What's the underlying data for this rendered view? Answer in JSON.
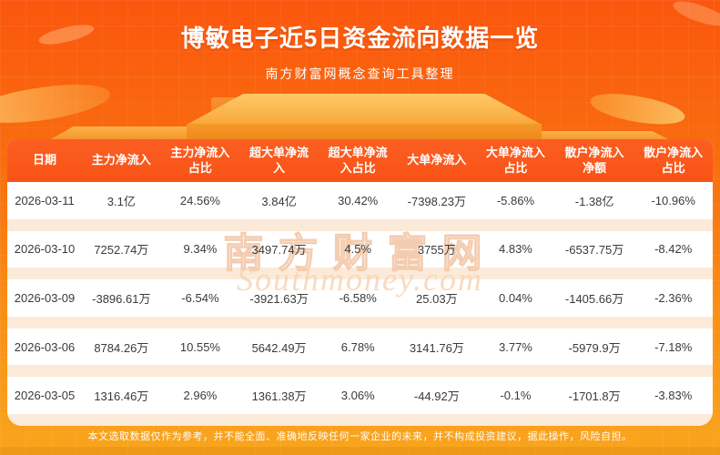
{
  "header": {
    "title": "博敏电子近5日资金流向数据一览",
    "subtitle": "南方财富网概念查询工具整理"
  },
  "watermark": {
    "cn": "南方财富网",
    "en": "Southmoney.com"
  },
  "footer": {
    "disclaimer": "本文选取数据仅作为参考，并不能全面、准确地反映任何一家企业的未来，并不构成投资建议，据此操作，风险自担。"
  },
  "colors": {
    "bg_top": "#fb560e",
    "bg_bottom": "#f9a51d",
    "table_header_bg": "#f95316",
    "row_bg": "#ffffff",
    "row_separator": "#fbead8",
    "podium_top": "#fdc968",
    "podium_front": "#ee8317",
    "body_text": "#3a3a3a",
    "title_text": "#ffffff"
  },
  "chart_data": {
    "type": "table",
    "title": "博敏电子近5日资金流向数据一览",
    "subtitle": "南方财富网概念查询工具整理",
    "columns": [
      "日期",
      "主力净流入",
      "主力净流入占比",
      "超大单净流入",
      "超大单净流入占比",
      "大单净流入",
      "大单净流入占比",
      "散户净流入净额",
      "散户净流入占比"
    ],
    "rows": [
      [
        "2026-03-11",
        "3.1亿",
        "24.56%",
        "3.84亿",
        "30.42%",
        "-7398.23万",
        "-5.86%",
        "-1.38亿",
        "-10.96%"
      ],
      [
        "2026-03-10",
        "7252.74万",
        "9.34%",
        "3497.74万",
        "4.5%",
        "3755万",
        "4.83%",
        "-6537.75万",
        "-8.42%"
      ],
      [
        "2026-03-09",
        "-3896.61万",
        "-6.54%",
        "-3921.63万",
        "-6.58%",
        "25.03万",
        "0.04%",
        "-1405.66万",
        "-2.36%"
      ],
      [
        "2026-03-06",
        "8784.26万",
        "10.55%",
        "5642.49万",
        "6.78%",
        "3141.76万",
        "3.77%",
        "-5979.9万",
        "-7.18%"
      ],
      [
        "2026-03-05",
        "1316.46万",
        "2.96%",
        "1361.38万",
        "3.06%",
        "-44.92万",
        "-0.1%",
        "-1701.8万",
        "-3.83%"
      ]
    ]
  }
}
